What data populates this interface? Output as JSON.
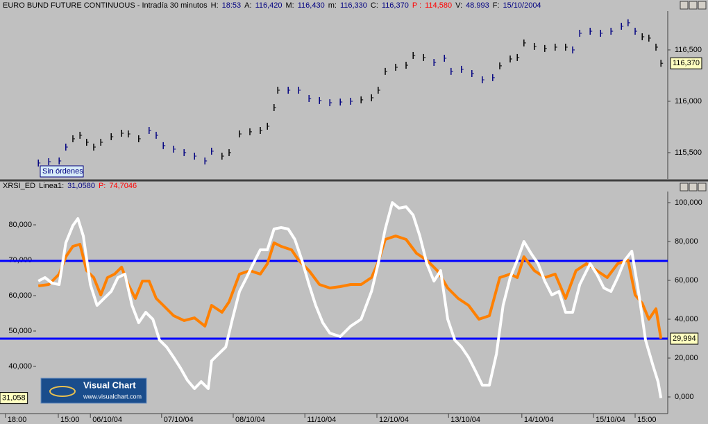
{
  "chart_data": [
    {
      "type": "tick",
      "title": "EURO BUND FUTURE CONTINUOUS - Intradía 30 minutos",
      "info": [
        {
          "label": "H:",
          "value": "18:53"
        },
        {
          "label": "A:",
          "value": "116,420"
        },
        {
          "label": "M:",
          "value": "116,430"
        },
        {
          "label": "m:",
          "value": "116,330"
        },
        {
          "label": "C:",
          "value": "116,370"
        },
        {
          "label": "P :",
          "value": "114,580",
          "color": "#ff0000"
        },
        {
          "label": "V:",
          "value": "48.993"
        },
        {
          "label": "F:",
          "value": "15/10/2004"
        }
      ],
      "order_status": "Sin órdenes",
      "y_axis_side": "right",
      "xlim": [
        0,
        160.33
      ],
      "ylim": [
        115.243,
        116.878
      ],
      "yticks": [
        {
          "value": 115.5,
          "label": "115,500"
        },
        {
          "value": 116,
          "label": "116,000"
        },
        {
          "value": 116.5,
          "label": "116,500"
        }
      ],
      "series": [
        {
          "color": "#000080",
          "last_label": "116,370",
          "x": [
            9.2,
            11.7,
            14.2,
            15.8,
            17.5,
            19.2,
            20.8,
            22.5,
            24.2,
            26.7,
            29.2,
            30.8,
            33.3,
            35.8,
            37.5,
            39.2,
            41.7,
            44.2,
            46.7,
            49.2,
            50.8,
            53.3,
            55,
            57.5,
            60,
            62.5,
            64.2,
            65.8,
            66.7,
            69.2,
            71.7,
            74.2,
            76.7,
            79.2,
            81.7,
            84.2,
            86.7,
            89.2,
            90.8,
            92.5,
            95,
            97.5,
            99.2,
            101.7,
            104.2,
            106.7,
            108.3,
            110.8,
            113.3,
            115.8,
            118.3,
            120,
            122.5,
            124.2,
            125.8,
            128.3,
            130.8,
            133.3,
            135.8,
            137.5,
            139.2,
            141.7,
            144.2,
            146.7,
            149.2,
            150.8,
            152.5,
            154.2,
            155.8,
            157.5,
            158.7
          ],
          "values": [
            115.399,
            115.412,
            115.419,
            115.554,
            115.635,
            115.669,
            115.601,
            115.554,
            115.601,
            115.655,
            115.689,
            115.682,
            115.635,
            115.716,
            115.669,
            115.568,
            115.534,
            115.5,
            115.466,
            115.419,
            115.514,
            115.466,
            115.5,
            115.682,
            115.703,
            115.716,
            115.757,
            115.939,
            116.108,
            116.108,
            116.108,
            116.027,
            116.007,
            115.986,
            115.993,
            116,
            116.014,
            116.034,
            116.108,
            116.291,
            116.331,
            116.351,
            116.446,
            116.426,
            116.378,
            116.419,
            116.291,
            116.311,
            116.27,
            116.209,
            116.23,
            116.345,
            116.412,
            116.426,
            116.568,
            116.534,
            116.514,
            116.527,
            116.527,
            116.5,
            116.662,
            116.682,
            116.662,
            116.682,
            116.73,
            116.764,
            116.682,
            116.628,
            116.615,
            116.527,
            116.37
          ]
        }
      ]
    },
    {
      "type": "line",
      "title": "XRSI_ED",
      "info": [
        {
          "label": "Linea1:",
          "value": "31,0580"
        },
        {
          "label": "P:",
          "value": "74,7046",
          "color": "#ff0000"
        }
      ],
      "y_axis_side": "left",
      "xlim": [
        0,
        160.33
      ],
      "ylim": [
        26.67,
        89.41
      ],
      "y2lim": [
        -8.57,
        105.71
      ],
      "yticks": [
        {
          "value": 40,
          "label": "40,000"
        },
        {
          "value": 50,
          "label": "50,000"
        },
        {
          "value": 60,
          "label": "60,000"
        },
        {
          "value": 70,
          "label": "70,000"
        },
        {
          "value": 80,
          "label": "80,000"
        }
      ],
      "y2ticks": [
        {
          "value": 0,
          "label": "0,000"
        },
        {
          "value": 20,
          "label": "20,000"
        },
        {
          "value": 40,
          "label": "40,000"
        },
        {
          "value": 60,
          "label": "60,000"
        },
        {
          "value": 80,
          "label": "80,000"
        },
        {
          "value": 100,
          "label": "100,000"
        }
      ],
      "xticks": [
        {
          "value": 1.3,
          "label": "18:00"
        },
        {
          "value": 14,
          "label": "15:00"
        },
        {
          "value": 21.7,
          "label": "06/10/04"
        },
        {
          "value": 38.8,
          "label": "07/10/04"
        },
        {
          "value": 56,
          "label": "08/10/04"
        },
        {
          "value": 73.2,
          "label": "11/10/04"
        },
        {
          "value": 90.5,
          "label": "12/10/04"
        },
        {
          "value": 107.7,
          "label": "13/10/04"
        },
        {
          "value": 125.3,
          "label": "14/10/04"
        },
        {
          "value": 142.5,
          "label": "15/10/04"
        },
        {
          "value": 152.5,
          "label": "15:00"
        }
      ],
      "levels": [
        {
          "value": 70,
          "axis": "y2",
          "color": "#0000ff"
        },
        {
          "value": 30,
          "axis": "y2",
          "color": "#0000ff"
        }
      ],
      "series": [
        {
          "color": "#ff8000",
          "axis": "y2",
          "last_label": "29,994",
          "x": [
            9.2,
            11.7,
            14.2,
            15.8,
            17.5,
            19.2,
            20.8,
            22.5,
            24.2,
            25.8,
            27.5,
            29.2,
            30.8,
            32.5,
            34.2,
            35.8,
            37.5,
            39.2,
            41.7,
            44.2,
            46.7,
            49.2,
            50.8,
            53.3,
            55,
            57.5,
            60,
            62.5,
            64.2,
            65.8,
            67.5,
            70,
            71.7,
            74.2,
            76.7,
            79.2,
            81.7,
            84.2,
            86.7,
            89.2,
            90.8,
            92.5,
            95,
            97.5,
            100,
            102.5,
            105,
            107.5,
            110,
            112.5,
            115,
            117.5,
            120,
            122.5,
            124.2,
            125.8,
            128.3,
            130.8,
            133.3,
            135.8,
            138.3,
            140.8,
            143.3,
            145.8,
            148.3,
            150.8,
            152.5,
            154.2,
            155.8,
            157.5,
            158.7
          ],
          "values": [
            57.14,
            57.86,
            63.21,
            72.14,
            77.5,
            78.57,
            65,
            61.43,
            52.5,
            61.43,
            63.21,
            66.79,
            57.86,
            50.71,
            59.64,
            59.64,
            50.71,
            47.14,
            41.79,
            39.29,
            40.71,
            36.43,
            47.14,
            43.57,
            48.93,
            63.21,
            65,
            63.21,
            68.57,
            79.29,
            77.5,
            75.71,
            70.36,
            65,
            57.86,
            56.07,
            56.79,
            57.86,
            57.86,
            61.43,
            69.29,
            81.07,
            82.86,
            81.07,
            73.93,
            70.36,
            65,
            56.07,
            50.71,
            47.14,
            40,
            41.79,
            61.43,
            63.21,
            61.43,
            72.14,
            65,
            61.43,
            63.21,
            50.71,
            65,
            68.57,
            65,
            61.43,
            68.57,
            70.36,
            52.5,
            48.21,
            40,
            45.36,
            29.994
          ]
        },
        {
          "color": "#ffffff",
          "axis": "y",
          "last_label": "31,058",
          "x": [
            9.2,
            10.8,
            12.5,
            14.2,
            15.8,
            17.5,
            18.7,
            20,
            21.7,
            23.3,
            25,
            26.7,
            28.3,
            30,
            31.7,
            33.3,
            35,
            36.7,
            38.3,
            40,
            41.7,
            43.3,
            45,
            46.7,
            48.3,
            50,
            50.8,
            52.5,
            54.2,
            55.8,
            57.5,
            59.2,
            60.8,
            62.5,
            64.2,
            65.8,
            67.5,
            69.2,
            70.8,
            72.5,
            74.2,
            75.8,
            77.5,
            79.2,
            81.7,
            84.2,
            86.7,
            89.2,
            90.8,
            92.5,
            94.2,
            95.8,
            97.5,
            99.2,
            100.8,
            102.5,
            104.2,
            105.8,
            107.5,
            109.2,
            110.8,
            112.5,
            114.2,
            115.8,
            117.5,
            119.2,
            120.8,
            122.5,
            124.2,
            125.8,
            127.5,
            129.2,
            130.8,
            132.5,
            134.2,
            135.8,
            137.5,
            139.2,
            141.7,
            143.3,
            145,
            146.7,
            148.3,
            150,
            151.7,
            153.3,
            155,
            156.7,
            158,
            158.7
          ],
          "values": [
            64.12,
            65.1,
            63.53,
            63.14,
            74.9,
            79.8,
            81.76,
            76.86,
            63.14,
            57.25,
            59.22,
            61.18,
            65.1,
            66.08,
            57.25,
            52.35,
            55.29,
            53.33,
            47.45,
            45.49,
            42.55,
            39.61,
            36.08,
            33.73,
            35.69,
            33.73,
            41.57,
            43.53,
            45.49,
            53.33,
            61.18,
            65.1,
            69.02,
            72.94,
            72.94,
            78.82,
            79.22,
            78.82,
            75.88,
            70,
            63.14,
            57.25,
            52.35,
            49.41,
            48.43,
            51.37,
            53.33,
            61.18,
            69.02,
            78.82,
            86.27,
            84.71,
            85.1,
            82.75,
            76.86,
            69.02,
            64.12,
            67.06,
            53.33,
            47.45,
            45.49,
            42.55,
            38.63,
            34.71,
            34.71,
            43.53,
            57.25,
            65.1,
            70,
            75.29,
            71.96,
            69.02,
            64.12,
            60.2,
            61.18,
            55.29,
            55.29,
            63.14,
            69.02,
            66.08,
            62.16,
            61.18,
            65.1,
            70,
            72.55,
            61.18,
            47.45,
            40.59,
            35.69,
            31.058
          ]
        }
      ]
    }
  ],
  "logo": {
    "name": "Visual Chart",
    "url": "www.visualchart.com"
  }
}
